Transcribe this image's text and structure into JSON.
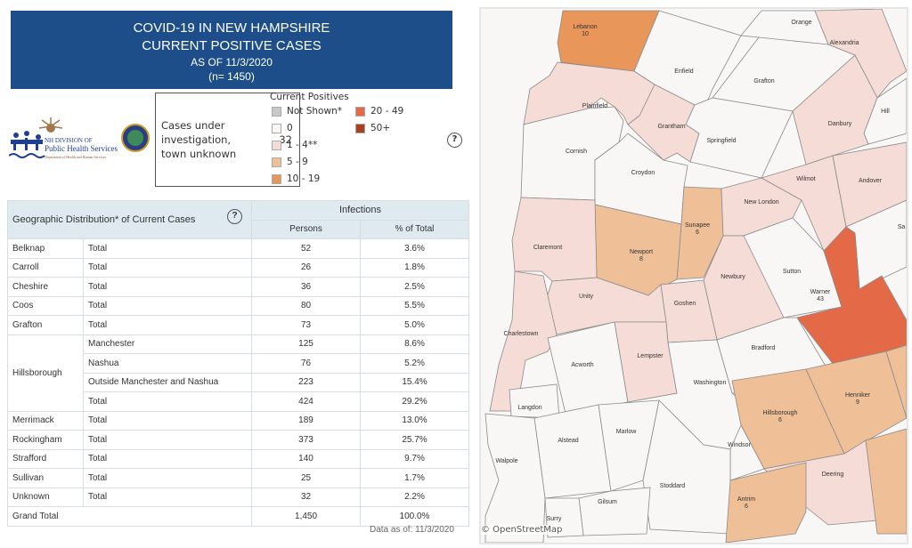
{
  "header": {
    "line1": "COVID-19 IN NEW HAMPSHIRE",
    "line2": "CURRENT POSITIVE CASES",
    "line3": "AS OF 11/3/2020",
    "line4": "(n= 1450)"
  },
  "logo": {
    "line1": "NH DIVISION OF",
    "line2": "Public Health Services",
    "line3": "Department of Health and Human Services"
  },
  "case_box": {
    "label": "Cases under investigation, town unknown",
    "value": "32"
  },
  "legend": {
    "title": "Current Positives",
    "items": [
      {
        "label": "Not Shown*",
        "color": "#c8c8c8"
      },
      {
        "label": "0",
        "color": "#f8f7f6"
      },
      {
        "label": "1 - 4**",
        "color": "#f6dcd6"
      },
      {
        "label": "5 - 9",
        "color": "#efbf97"
      },
      {
        "label": "10 - 19",
        "color": "#e8965a"
      },
      {
        "label": "20 - 49",
        "color": "#e46a47"
      },
      {
        "label": "50+",
        "color": "#a8401f"
      }
    ]
  },
  "help_icon": "?",
  "table": {
    "title": "Geographic Distribution* of Current Cases",
    "group_header": "Infections",
    "col_persons": "Persons",
    "col_pct": "% of Total",
    "rows": [
      {
        "county": "Belknap",
        "sub": "Total",
        "persons": "52",
        "pct": "3.6%"
      },
      {
        "county": "Carroll",
        "sub": "Total",
        "persons": "26",
        "pct": "1.8%"
      },
      {
        "county": "Cheshire",
        "sub": "Total",
        "persons": "36",
        "pct": "2.5%"
      },
      {
        "county": "Coos",
        "sub": "Total",
        "persons": "80",
        "pct": "5.5%"
      },
      {
        "county": "Grafton",
        "sub": "Total",
        "persons": "73",
        "pct": "5.0%"
      },
      {
        "county": "Hillsborough",
        "sub": "Manchester",
        "persons": "125",
        "pct": "8.6%"
      },
      {
        "county": "",
        "sub": "Nashua",
        "persons": "76",
        "pct": "5.2%"
      },
      {
        "county": "",
        "sub": "Outside Manchester and Nashua",
        "persons": "223",
        "pct": "15.4%"
      },
      {
        "county": "",
        "sub": "Total",
        "persons": "424",
        "pct": "29.2%"
      },
      {
        "county": "Merrimack",
        "sub": "Total",
        "persons": "189",
        "pct": "13.0%"
      },
      {
        "county": "Rockingham",
        "sub": "Total",
        "persons": "373",
        "pct": "25.7%"
      },
      {
        "county": "Strafford",
        "sub": "Total",
        "persons": "140",
        "pct": "9.7%"
      },
      {
        "county": "Sullivan",
        "sub": "Total",
        "persons": "25",
        "pct": "1.7%"
      },
      {
        "county": "Unknown",
        "sub": "Total",
        "persons": "32",
        "pct": "2.2%"
      }
    ],
    "grand_total": {
      "label": "Grand Total",
      "persons": "1,450",
      "pct": "100.0%"
    }
  },
  "footer": "Data as of:  11/3/2020",
  "map": {
    "attribution": "© OpenStreetMap",
    "towns": [
      {
        "name": "Lebanon",
        "count": "10"
      },
      {
        "name": "Enfield"
      },
      {
        "name": "Orange"
      },
      {
        "name": "Alexandria"
      },
      {
        "name": "Grafton"
      },
      {
        "name": "Plainfield"
      },
      {
        "name": "Grantham"
      },
      {
        "name": "Hill"
      },
      {
        "name": "Danbury"
      },
      {
        "name": "Springfield"
      },
      {
        "name": "Cornish"
      },
      {
        "name": "Croydon"
      },
      {
        "name": "Wilmot"
      },
      {
        "name": "Andover"
      },
      {
        "name": "New London"
      },
      {
        "name": "Sunapee",
        "count": "6"
      },
      {
        "name": "Claremont"
      },
      {
        "name": "Newport",
        "count": "8"
      },
      {
        "name": "Sa"
      },
      {
        "name": "Sutton"
      },
      {
        "name": "Newbury"
      },
      {
        "name": "Warner",
        "count": "43"
      },
      {
        "name": "Unity"
      },
      {
        "name": "Goshen"
      },
      {
        "name": "Charlestown"
      },
      {
        "name": "Bradford"
      },
      {
        "name": "Lempster"
      },
      {
        "name": "Acworth"
      },
      {
        "name": "Washington"
      },
      {
        "name": "Hillsborough",
        "count": "6"
      },
      {
        "name": "Henniker",
        "count": "9"
      },
      {
        "name": "Langdon"
      },
      {
        "name": "Marlow"
      },
      {
        "name": "Alstead"
      },
      {
        "name": "Windsor"
      },
      {
        "name": "Walpole"
      },
      {
        "name": "Deering"
      },
      {
        "name": "Stoddard"
      },
      {
        "name": "Antrim",
        "count": "6"
      },
      {
        "name": "Gilsum"
      },
      {
        "name": "Surry"
      }
    ]
  }
}
